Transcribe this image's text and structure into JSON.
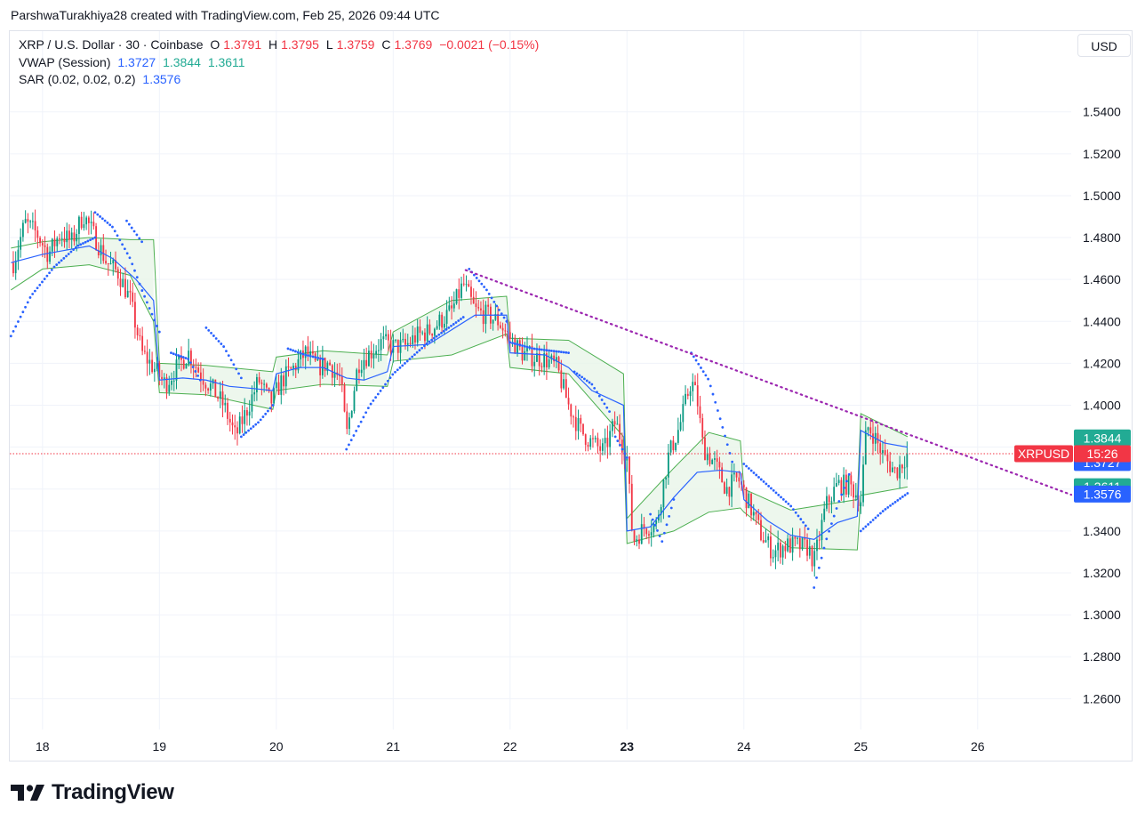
{
  "credit": "ParshwaTurakhiya28 created with TradingView.com, Feb 25, 2026 09:44 UTC",
  "legend": {
    "symbol": "XRP / U.S. Dollar · 30 · Coinbase",
    "open_label": "O",
    "open": "1.3791",
    "high_label": "H",
    "high": "1.3795",
    "low_label": "L",
    "low": "1.3759",
    "close_label": "C",
    "close": "1.3769",
    "change": "−0.0021 (−0.15%)",
    "vwap_label": "VWAP (Session)",
    "vwap_values": [
      "1.3727",
      "1.3844",
      "1.3611"
    ],
    "sar_label": "SAR (0.02, 0.02, 0.2)",
    "sar_value": "1.3576"
  },
  "currency_button": "USD",
  "logo_text": "TradingView",
  "colors": {
    "up": "#089981",
    "down": "#f23645",
    "vwap": "#2962ff",
    "band": "#4caf50",
    "band_fill": "#e8f5e9",
    "sar": "#2962ff",
    "trendline": "#9c27b0",
    "grid": "#f0f3fa"
  },
  "chart_data": {
    "type": "candlestick",
    "symbol": "XRPUSD",
    "interval": "30",
    "x_ticks": [
      {
        "day": 18,
        "label": "18"
      },
      {
        "day": 19,
        "label": "19"
      },
      {
        "day": 20,
        "label": "20"
      },
      {
        "day": 21,
        "label": "21"
      },
      {
        "day": 22,
        "label": "22"
      },
      {
        "day": 23,
        "label": "23",
        "bold": true
      },
      {
        "day": 24,
        "label": "24"
      },
      {
        "day": 25,
        "label": "25"
      },
      {
        "day": 26,
        "label": "26"
      }
    ],
    "xlim": [
      17.72,
      26.8
    ],
    "ylim": [
      1.2453,
      1.5785
    ],
    "y_ticks": [
      "1.5400",
      "1.5200",
      "1.5000",
      "1.4800",
      "1.4600",
      "1.4400",
      "1.4200",
      "1.4000",
      "1.3400",
      "1.3200",
      "1.3000",
      "1.2800",
      "1.2600"
    ],
    "grid": true,
    "price_line": 1.3769,
    "price_badge": {
      "symbol": "XRPUSD",
      "value": "15:26"
    },
    "scale_badges": [
      {
        "value": "1.3844",
        "color": "#22ab94"
      },
      {
        "value": "1.3727",
        "color": "#2962ff"
      },
      {
        "value": "1.3611",
        "color": "#22ab94"
      },
      {
        "value": "1.3576",
        "color": "#2962ff"
      }
    ],
    "close_path": [
      [
        17.75,
        1.468
      ],
      [
        17.85,
        1.487
      ],
      [
        17.95,
        1.482
      ],
      [
        18.05,
        1.472
      ],
      [
        18.15,
        1.482
      ],
      [
        18.25,
        1.478
      ],
      [
        18.35,
        1.491
      ],
      [
        18.45,
        1.48
      ],
      [
        18.55,
        1.468
      ],
      [
        18.65,
        1.463
      ],
      [
        18.75,
        1.45
      ],
      [
        18.85,
        1.425
      ],
      [
        18.95,
        1.418
      ],
      [
        19.05,
        1.41
      ],
      [
        19.15,
        1.418
      ],
      [
        19.25,
        1.425
      ],
      [
        19.35,
        1.415
      ],
      [
        19.45,
        1.408
      ],
      [
        19.55,
        1.4
      ],
      [
        19.65,
        1.385
      ],
      [
        19.75,
        1.398
      ],
      [
        19.85,
        1.412
      ],
      [
        19.95,
        1.401
      ],
      [
        20.05,
        1.412
      ],
      [
        20.15,
        1.418
      ],
      [
        20.25,
        1.425
      ],
      [
        20.35,
        1.418
      ],
      [
        20.45,
        1.42
      ],
      [
        20.55,
        1.412
      ],
      [
        20.6,
        1.385
      ],
      [
        20.7,
        1.42
      ],
      [
        20.8,
        1.425
      ],
      [
        20.9,
        1.43
      ],
      [
        21.0,
        1.428
      ],
      [
        21.1,
        1.428
      ],
      [
        21.2,
        1.433
      ],
      [
        21.3,
        1.435
      ],
      [
        21.4,
        1.44
      ],
      [
        21.5,
        1.445
      ],
      [
        21.6,
        1.458
      ],
      [
        21.7,
        1.445
      ],
      [
        21.8,
        1.443
      ],
      [
        21.9,
        1.44
      ],
      [
        22.0,
        1.432
      ],
      [
        22.1,
        1.425
      ],
      [
        22.2,
        1.423
      ],
      [
        22.3,
        1.422
      ],
      [
        22.4,
        1.418
      ],
      [
        22.5,
        1.4
      ],
      [
        22.6,
        1.388
      ],
      [
        22.7,
        1.382
      ],
      [
        22.8,
        1.378
      ],
      [
        22.9,
        1.392
      ],
      [
        23.0,
        1.375
      ],
      [
        23.05,
        1.335
      ],
      [
        23.15,
        1.342
      ],
      [
        23.25,
        1.343
      ],
      [
        23.35,
        1.375
      ],
      [
        23.45,
        1.39
      ],
      [
        23.55,
        1.412
      ],
      [
        23.6,
        1.403
      ],
      [
        23.65,
        1.38
      ],
      [
        23.75,
        1.372
      ],
      [
        23.85,
        1.36
      ],
      [
        23.95,
        1.365
      ],
      [
        24.05,
        1.352
      ],
      [
        24.15,
        1.338
      ],
      [
        24.25,
        1.33
      ],
      [
        24.35,
        1.333
      ],
      [
        24.45,
        1.333
      ],
      [
        24.55,
        1.332
      ],
      [
        24.6,
        1.325
      ],
      [
        24.7,
        1.352
      ],
      [
        24.8,
        1.362
      ],
      [
        24.9,
        1.362
      ],
      [
        25.0,
        1.355
      ],
      [
        25.05,
        1.39
      ],
      [
        25.1,
        1.387
      ],
      [
        25.2,
        1.375
      ],
      [
        25.3,
        1.368
      ],
      [
        25.4,
        1.377
      ]
    ],
    "vwap": [
      [
        17.73,
        1.468
      ],
      [
        18.0,
        1.472
      ],
      [
        18.2,
        1.474
      ],
      [
        18.4,
        1.476
      ],
      [
        18.6,
        1.47
      ],
      [
        18.8,
        1.46
      ],
      [
        18.95,
        1.45
      ],
      [
        19.0,
        1.412
      ],
      [
        19.2,
        1.413
      ],
      [
        19.4,
        1.412
      ],
      [
        19.6,
        1.409
      ],
      [
        19.8,
        1.408
      ],
      [
        19.97,
        1.407
      ],
      [
        20.0,
        1.415
      ],
      [
        20.2,
        1.418
      ],
      [
        20.4,
        1.418
      ],
      [
        20.6,
        1.413
      ],
      [
        20.75,
        1.412
      ],
      [
        20.95,
        1.416
      ],
      [
        21.0,
        1.428
      ],
      [
        21.3,
        1.429
      ],
      [
        21.5,
        1.436
      ],
      [
        21.7,
        1.443
      ],
      [
        21.97,
        1.443
      ],
      [
        22.0,
        1.425
      ],
      [
        22.3,
        1.424
      ],
      [
        22.5,
        1.418
      ],
      [
        22.7,
        1.407
      ],
      [
        22.97,
        1.4
      ],
      [
        23.0,
        1.34
      ],
      [
        23.2,
        1.342
      ],
      [
        23.4,
        1.356
      ],
      [
        23.6,
        1.368
      ],
      [
        23.8,
        1.369
      ],
      [
        23.97,
        1.368
      ],
      [
        24.0,
        1.355
      ],
      [
        24.2,
        1.345
      ],
      [
        24.4,
        1.338
      ],
      [
        24.6,
        1.336
      ],
      [
        24.8,
        1.344
      ],
      [
        24.97,
        1.347
      ],
      [
        25.0,
        1.388
      ],
      [
        25.2,
        1.382
      ],
      [
        25.4,
        1.38
      ]
    ],
    "vwap_upper": [
      [
        17.73,
        1.475
      ],
      [
        18.0,
        1.478
      ],
      [
        18.4,
        1.48
      ],
      [
        18.75,
        1.479
      ],
      [
        18.95,
        1.479
      ],
      [
        19.0,
        1.42
      ],
      [
        19.4,
        1.419
      ],
      [
        19.97,
        1.416
      ],
      [
        20.0,
        1.423
      ],
      [
        20.4,
        1.426
      ],
      [
        20.95,
        1.424
      ],
      [
        21.0,
        1.435
      ],
      [
        21.5,
        1.45
      ],
      [
        21.97,
        1.452
      ],
      [
        22.0,
        1.432
      ],
      [
        22.5,
        1.431
      ],
      [
        22.97,
        1.415
      ],
      [
        23.0,
        1.346
      ],
      [
        23.4,
        1.37
      ],
      [
        23.7,
        1.387
      ],
      [
        23.97,
        1.383
      ],
      [
        24.0,
        1.36
      ],
      [
        24.4,
        1.35
      ],
      [
        24.97,
        1.355
      ],
      [
        25.0,
        1.396
      ],
      [
        25.4,
        1.385
      ]
    ],
    "vwap_lower": [
      [
        17.73,
        1.455
      ],
      [
        18.0,
        1.465
      ],
      [
        18.4,
        1.467
      ],
      [
        18.75,
        1.462
      ],
      [
        18.95,
        1.44
      ],
      [
        19.0,
        1.406
      ],
      [
        19.4,
        1.405
      ],
      [
        19.97,
        1.398
      ],
      [
        20.0,
        1.407
      ],
      [
        20.4,
        1.41
      ],
      [
        20.95,
        1.409
      ],
      [
        21.0,
        1.421
      ],
      [
        21.5,
        1.424
      ],
      [
        21.97,
        1.434
      ],
      [
        22.0,
        1.418
      ],
      [
        22.5,
        1.415
      ],
      [
        22.97,
        1.385
      ],
      [
        23.0,
        1.334
      ],
      [
        23.4,
        1.34
      ],
      [
        23.7,
        1.349
      ],
      [
        23.97,
        1.351
      ],
      [
        24.0,
        1.349
      ],
      [
        24.4,
        1.332
      ],
      [
        24.97,
        1.331
      ],
      [
        25.0,
        1.357
      ],
      [
        25.4,
        1.361
      ]
    ],
    "sar_segments": [
      [
        [
          17.73,
          1.433
        ],
        [
          17.9,
          1.452
        ],
        [
          18.1,
          1.466
        ],
        [
          18.3,
          1.476
        ],
        [
          18.45,
          1.48
        ]
      ],
      [
        [
          18.45,
          1.492
        ],
        [
          18.6,
          1.485
        ],
        [
          18.75,
          1.47
        ],
        [
          18.85,
          1.455
        ],
        [
          19.0,
          1.435
        ]
      ],
      [
        [
          18.72,
          1.488
        ],
        [
          18.85,
          1.478
        ]
      ],
      [
        [
          19.1,
          1.425
        ],
        [
          19.25,
          1.422
        ],
        [
          19.35,
          1.412
        ]
      ],
      [
        [
          19.4,
          1.437
        ],
        [
          19.55,
          1.428
        ],
        [
          19.7,
          1.413
        ]
      ],
      [
        [
          19.7,
          1.385
        ],
        [
          19.85,
          1.392
        ],
        [
          19.97,
          1.4
        ]
      ],
      [
        [
          20.1,
          1.427
        ],
        [
          20.25,
          1.424
        ],
        [
          20.4,
          1.422
        ]
      ],
      [
        [
          20.6,
          1.379
        ],
        [
          20.8,
          1.4
        ],
        [
          21.0,
          1.415
        ],
        [
          21.3,
          1.43
        ],
        [
          21.5,
          1.438
        ],
        [
          21.6,
          1.442
        ]
      ],
      [
        [
          21.65,
          1.465
        ],
        [
          21.8,
          1.455
        ],
        [
          21.9,
          1.446
        ],
        [
          21.97,
          1.44
        ]
      ],
      [
        [
          22.0,
          1.43
        ],
        [
          22.2,
          1.427
        ],
        [
          22.5,
          1.425
        ]
      ],
      [
        [
          22.55,
          1.416
        ],
        [
          22.7,
          1.41
        ],
        [
          22.85,
          1.397
        ]
      ],
      [
        [
          22.9,
          1.385
        ],
        [
          23.0,
          1.375
        ]
      ],
      [
        [
          23.2,
          1.348
        ],
        [
          23.3,
          1.335
        ],
        [
          23.4,
          1.355
        ]
      ],
      [
        [
          23.55,
          1.425
        ],
        [
          23.7,
          1.412
        ],
        [
          23.8,
          1.393
        ],
        [
          23.9,
          1.373
        ]
      ],
      [
        [
          24.0,
          1.372
        ],
        [
          24.2,
          1.362
        ],
        [
          24.4,
          1.352
        ],
        [
          24.55,
          1.341
        ]
      ],
      [
        [
          24.6,
          1.313
        ],
        [
          24.7,
          1.335
        ],
        [
          24.8,
          1.352
        ],
        [
          24.9,
          1.367
        ]
      ],
      [
        [
          25.0,
          1.34
        ],
        [
          25.2,
          1.35
        ],
        [
          25.4,
          1.358
        ]
      ]
    ],
    "trendline": [
      [
        21.62,
        1.4645
      ],
      [
        26.8,
        1.3573
      ]
    ]
  }
}
